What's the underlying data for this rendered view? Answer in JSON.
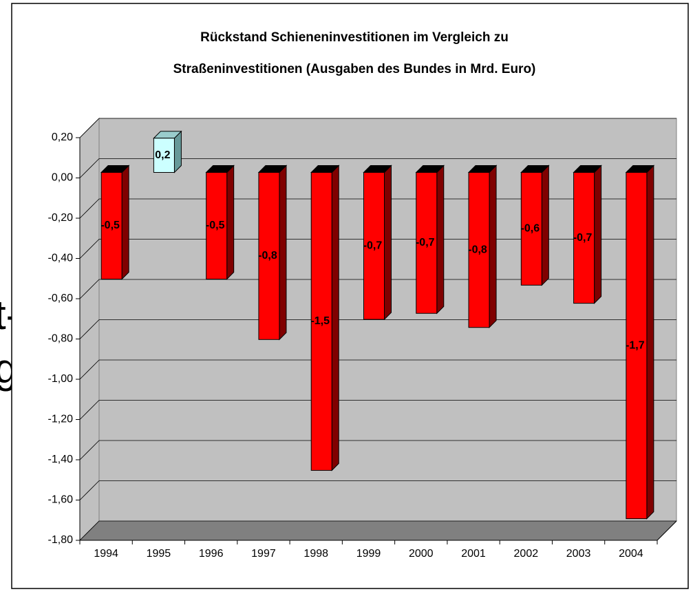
{
  "chart_data": {
    "type": "bar3d",
    "title": [
      "Rückstand Schieneninvestitionen im Vergleich zu",
      "Straßeninvestitionen (Ausgaben des Bundes in Mrd. Euro)"
    ],
    "background_text": [
      "t-",
      "g"
    ],
    "categories": [
      "1994",
      "1995",
      "1996",
      "1997",
      "1998",
      "1999",
      "2000",
      "2001",
      "2002",
      "2003",
      "2004"
    ],
    "values": [
      -0.53,
      0.17,
      -0.53,
      -0.83,
      -1.48,
      -0.73,
      -0.7,
      -0.77,
      -0.56,
      -0.65,
      -1.72
    ],
    "value_labels": [
      "-0,5",
      "0,2",
      "-0,5",
      "-0,8",
      "-1,5",
      "-0,7",
      "-0,7",
      "-0,8",
      "-0,6",
      "-0,7",
      "-1,7"
    ],
    "color": "#ff0000",
    "positive_color": "#ccffff",
    "ylim": [
      -1.8,
      0.2
    ],
    "yticks": [
      {
        "value": 0.2,
        "label": "0,20"
      },
      {
        "value": 0,
        "label": "0,00"
      },
      {
        "value": -0.2,
        "label": "-0,20"
      },
      {
        "value": -0.4,
        "label": "-0,40"
      },
      {
        "value": -0.6,
        "label": "-0,60"
      },
      {
        "value": -0.8,
        "label": "-0,80"
      },
      {
        "value": -1,
        "label": "-1,00"
      },
      {
        "value": -1.2,
        "label": "-1,20"
      },
      {
        "value": -1.4,
        "label": "-1,40"
      },
      {
        "value": -1.6,
        "label": "-1,60"
      },
      {
        "value": -1.8,
        "label": "-1,80"
      }
    ],
    "grid": true
  }
}
